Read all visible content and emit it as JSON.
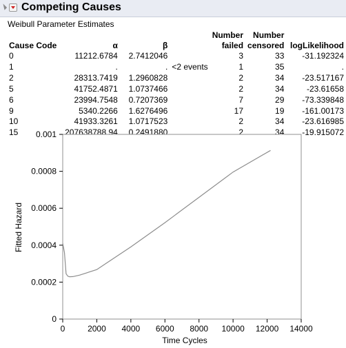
{
  "window": {
    "title": "Competing Causes",
    "subtitle": "Weibull Parameter Estimates"
  },
  "table": {
    "headers": {
      "cause_code": "Cause Code",
      "alpha": "α",
      "beta": "β",
      "number_failed_1": "Number",
      "number_failed_2": "failed",
      "number_censored_1": "Number",
      "number_censored_2": "censored",
      "loglikelihood": "logLikelihood"
    },
    "rows": [
      {
        "code": "0",
        "alpha": "11212.6784",
        "beta": "2.7412046",
        "note": "",
        "failed": "3",
        "censored": "33",
        "loglik": "-31.192324"
      },
      {
        "code": "1",
        "alpha": ".",
        "beta": ".",
        "note": "<2 events",
        "failed": "1",
        "censored": "35",
        "loglik": "."
      },
      {
        "code": "2",
        "alpha": "28313.7419",
        "beta": "1.2960828",
        "note": "",
        "failed": "2",
        "censored": "34",
        "loglik": "-23.517167"
      },
      {
        "code": "5",
        "alpha": "41752.4871",
        "beta": "1.0737466",
        "note": "",
        "failed": "2",
        "censored": "34",
        "loglik": "-23.61658"
      },
      {
        "code": "6",
        "alpha": "23994.7548",
        "beta": "0.7207369",
        "note": "",
        "failed": "7",
        "censored": "29",
        "loglik": "-73.339848"
      },
      {
        "code": "9",
        "alpha": "5340.2266",
        "beta": "1.6276496",
        "note": "",
        "failed": "17",
        "censored": "19",
        "loglik": "-161.00173"
      },
      {
        "code": "10",
        "alpha": "41933.3261",
        "beta": "1.0717523",
        "note": "",
        "failed": "2",
        "censored": "34",
        "loglik": "-23.616985"
      },
      {
        "code": "15",
        "alpha": "207638788.94",
        "beta": "0.2491880",
        "note": "",
        "failed": "2",
        "censored": "34",
        "loglik": "-19.915072"
      }
    ]
  },
  "chart_data": {
    "type": "line",
    "title": "",
    "xlabel": "Time Cycles",
    "ylabel": "Fitted Hazard",
    "xlim": [
      0,
      14000
    ],
    "ylim": [
      0,
      0.001
    ],
    "x_ticks": [
      "0",
      "2000",
      "4000",
      "6000",
      "8000",
      "10000",
      "12000",
      "14000"
    ],
    "x_tick_values": [
      0,
      2000,
      4000,
      6000,
      8000,
      10000,
      12000,
      14000
    ],
    "y_ticks": [
      "0",
      "0.0002",
      "0.0004",
      "0.0006",
      "0.0008",
      "0.001"
    ],
    "y_tick_values": [
      0,
      0.0002,
      0.0004,
      0.0006,
      0.0008,
      0.001
    ],
    "grid": false,
    "series": [
      {
        "color": "#8c8c8c",
        "x": [
          0,
          100,
          200,
          300,
          400,
          600,
          1000,
          2000,
          4000,
          6000,
          8000,
          10000,
          12200
        ],
        "y": [
          0.00041,
          0.00036,
          0.000245,
          0.000232,
          0.000229,
          0.00023,
          0.000238,
          0.000268,
          0.000391,
          0.000522,
          0.000659,
          0.000796,
          0.000913
        ]
      }
    ]
  }
}
